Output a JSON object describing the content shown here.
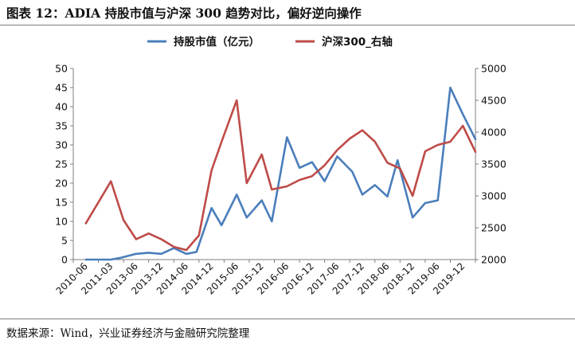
{
  "title": "图表 12：ADIA 持股市值与沪深 300 趋势对比，偏好逆向操作",
  "source": "数据来源：Wind，兴业证券经济与金融研究院整理",
  "chart_data": {
    "type": "line",
    "title": "",
    "xlabel": "",
    "ylabel": "",
    "x_ticks": [
      "2010-06",
      "2011-03",
      "2013-06",
      "2013-12",
      "2014-06",
      "2014-12",
      "2015-06",
      "2015-12",
      "2016-06",
      "2016-12",
      "2017-06",
      "2017-12",
      "2018-06",
      "2018-12",
      "2019-06",
      "2019-12"
    ],
    "ylim_left": [
      0,
      50
    ],
    "yticks_left": [
      0,
      5,
      10,
      15,
      20,
      25,
      30,
      35,
      40,
      45,
      50
    ],
    "ylim_right": [
      2000,
      5000
    ],
    "yticks_right": [
      2000,
      2500,
      3000,
      3500,
      4000,
      4500,
      5000
    ],
    "grid": false,
    "legend_position": "top",
    "series": [
      {
        "name": "持股市值（亿元）",
        "axis": "left",
        "color": "#4a7ebb",
        "x": [
          0,
          0.4,
          1,
          1.4,
          2,
          2.5,
          3,
          3.5,
          4,
          4.4,
          5,
          5.4,
          6,
          6.4,
          7,
          7.4,
          8,
          8.5,
          9,
          9.5,
          10,
          10.6,
          11,
          11.5,
          12,
          12.4,
          13,
          13.5,
          14,
          14.5,
          15,
          15.5
        ],
        "values": [
          0,
          0,
          0,
          0.5,
          1.5,
          1.8,
          1.5,
          3,
          1.5,
          2,
          13.5,
          9,
          17,
          11,
          15.5,
          10,
          32,
          24,
          25.5,
          20.5,
          27,
          23,
          17,
          19.5,
          16.5,
          26,
          11,
          14.8,
          15.5,
          45,
          38,
          31.5
        ]
      },
      {
        "name": "沪深300_右轴",
        "axis": "right",
        "color": "#be4b48",
        "x": [
          0,
          0.5,
          1,
          1.5,
          2,
          2.5,
          3,
          3.5,
          4,
          4.5,
          5,
          5.4,
          6,
          6.4,
          7,
          7.4,
          8,
          8.5,
          9,
          9.5,
          10,
          10.5,
          11,
          11.5,
          12,
          12.5,
          13,
          13.5,
          14,
          14.5,
          15,
          15.5
        ],
        "values": [
          2570,
          2900,
          3230,
          2620,
          2320,
          2410,
          2320,
          2200,
          2150,
          2380,
          3400,
          3850,
          4500,
          3200,
          3650,
          3100,
          3150,
          3250,
          3310,
          3480,
          3720,
          3900,
          4030,
          3850,
          3520,
          3430,
          3000,
          3700,
          3800,
          3850,
          4100,
          3690
        ]
      }
    ]
  }
}
